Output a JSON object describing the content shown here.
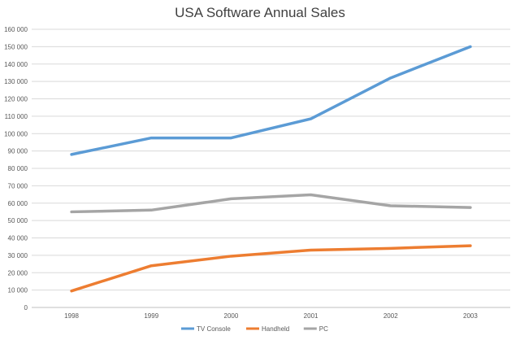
{
  "chart_data": {
    "type": "line",
    "title": "USA Software Annual Sales",
    "xlabel": "",
    "ylabel": "",
    "categories": [
      "1998",
      "1999",
      "2000",
      "2001",
      "2002",
      "2003"
    ],
    "ylim": [
      0,
      160000
    ],
    "ytick_step": 10000,
    "ytick_labels": [
      "0",
      "10 000",
      "20 000",
      "30 000",
      "40 000",
      "50 000",
      "60 000",
      "70 000",
      "80 000",
      "90 000",
      "100 000",
      "110 000",
      "120 000",
      "130 000",
      "140 000",
      "150 000",
      "160 000"
    ],
    "grid": true,
    "legend_position": "bottom",
    "series": [
      {
        "name": "TV Console",
        "color": "#5b9bd5",
        "values": [
          88000,
          97500,
          97500,
          108500,
          132000,
          150000
        ]
      },
      {
        "name": "Handheld",
        "color": "#ed7d31",
        "values": [
          9500,
          24000,
          29500,
          33000,
          34000,
          35500
        ]
      },
      {
        "name": "PC",
        "color": "#a5a5a5",
        "values": [
          55000,
          56000,
          62500,
          64800,
          58500,
          57500
        ]
      }
    ]
  }
}
